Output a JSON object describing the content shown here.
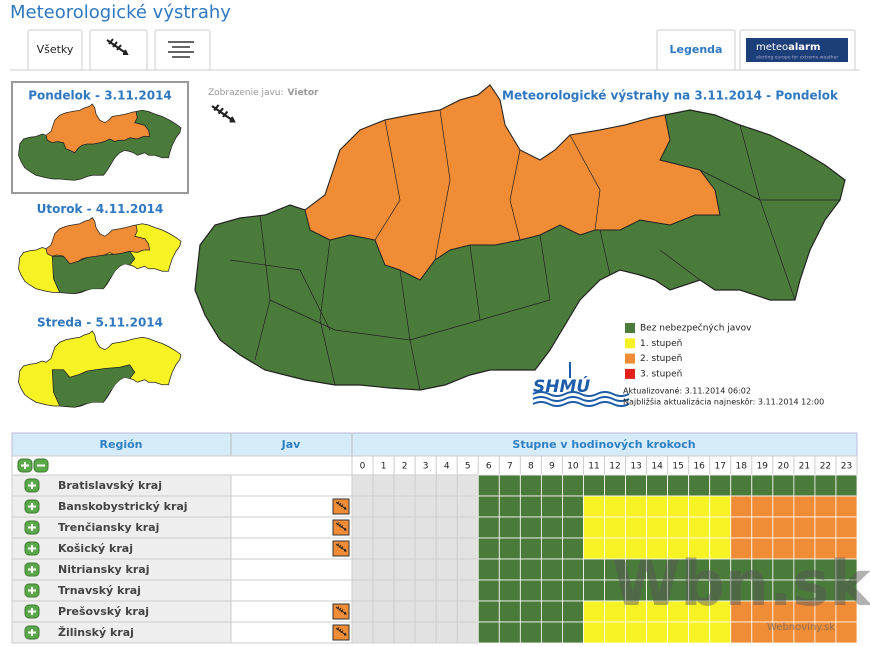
{
  "header": {
    "title": "Meteorologické výstrahy"
  },
  "tabs": [
    "Všetky",
    "Legenda"
  ],
  "meteoalarm": {
    "name_part1": "meteo",
    "name_part2": "alarm",
    "tagline": "alerting europe for extreme weather"
  },
  "days": [
    "Pondelok - 3.11.2014",
    "Utorok - 4.11.2014",
    "Streda - 5.11.2014"
  ],
  "phenomenon": {
    "label": "Zobrazenie javu:",
    "value": "Vietor"
  },
  "map": {
    "title": "Meteorologické výstrahy na 3.11.2014 - Pondelok",
    "logo": "SHMÚ",
    "updated": "Aktualizované: 3.11.2014 06:02",
    "next_update": "Najbližšia aktualizácia najneskôr: 3.11.2014 12:00"
  },
  "legend": [
    {
      "label": "Bez nebezpečných javov",
      "color": "#4b7b3b"
    },
    {
      "label": "1. stupeň",
      "color": "#f6f224"
    },
    {
      "label": "2. stupeň",
      "color": "#f08c36"
    },
    {
      "label": "3. stupeň",
      "color": "#e3211c"
    }
  ],
  "table": {
    "headers": [
      "Región",
      "Jav",
      "Stupne v hodinových krokoch"
    ],
    "hours": [
      0,
      1,
      2,
      3,
      4,
      5,
      6,
      7,
      8,
      9,
      10,
      11,
      12,
      13,
      14,
      15,
      16,
      17,
      18,
      19,
      20,
      21,
      22,
      23
    ],
    "rows": [
      {
        "region": "Bratislavský kraj",
        "levels": [
          null,
          null,
          null,
          null,
          null,
          null,
          0,
          0,
          0,
          0,
          0,
          0,
          0,
          0,
          0,
          0,
          0,
          0,
          0,
          0,
          0,
          0,
          0,
          0
        ]
      },
      {
        "region": "Banskobystrický kraj",
        "levels": [
          null,
          null,
          null,
          null,
          null,
          null,
          0,
          0,
          0,
          0,
          0,
          1,
          1,
          1,
          1,
          1,
          1,
          1,
          2,
          2,
          2,
          2,
          2,
          2
        ]
      },
      {
        "region": "Trenčiansky kraj",
        "levels": [
          null,
          null,
          null,
          null,
          null,
          null,
          0,
          0,
          0,
          0,
          0,
          1,
          1,
          1,
          1,
          1,
          1,
          1,
          2,
          2,
          2,
          2,
          2,
          2
        ]
      },
      {
        "region": "Košický kraj",
        "levels": [
          null,
          null,
          null,
          null,
          null,
          null,
          0,
          0,
          0,
          0,
          0,
          1,
          1,
          1,
          1,
          1,
          1,
          1,
          2,
          2,
          2,
          2,
          2,
          2
        ]
      },
      {
        "region": "Nitriansky kraj",
        "levels": [
          null,
          null,
          null,
          null,
          null,
          null,
          0,
          0,
          0,
          0,
          0,
          0,
          0,
          0,
          0,
          0,
          0,
          0,
          0,
          0,
          0,
          0,
          0,
          0
        ]
      },
      {
        "region": "Trnavský kraj",
        "levels": [
          null,
          null,
          null,
          null,
          null,
          null,
          0,
          0,
          0,
          0,
          0,
          0,
          0,
          0,
          0,
          0,
          0,
          0,
          0,
          0,
          0,
          0,
          0,
          0
        ]
      },
      {
        "region": "Prešovský kraj",
        "levels": [
          null,
          null,
          null,
          null,
          null,
          null,
          0,
          0,
          0,
          0,
          0,
          1,
          1,
          1,
          1,
          1,
          1,
          1,
          2,
          2,
          2,
          2,
          2,
          2
        ]
      },
      {
        "region": "Žilinský kraj",
        "levels": [
          null,
          null,
          null,
          null,
          null,
          null,
          0,
          0,
          0,
          0,
          0,
          1,
          1,
          1,
          1,
          1,
          1,
          1,
          2,
          2,
          2,
          2,
          2,
          2
        ]
      }
    ]
  },
  "watermark": {
    "logo": "Wbn.sk",
    "site": "Webnoviny.sk"
  }
}
